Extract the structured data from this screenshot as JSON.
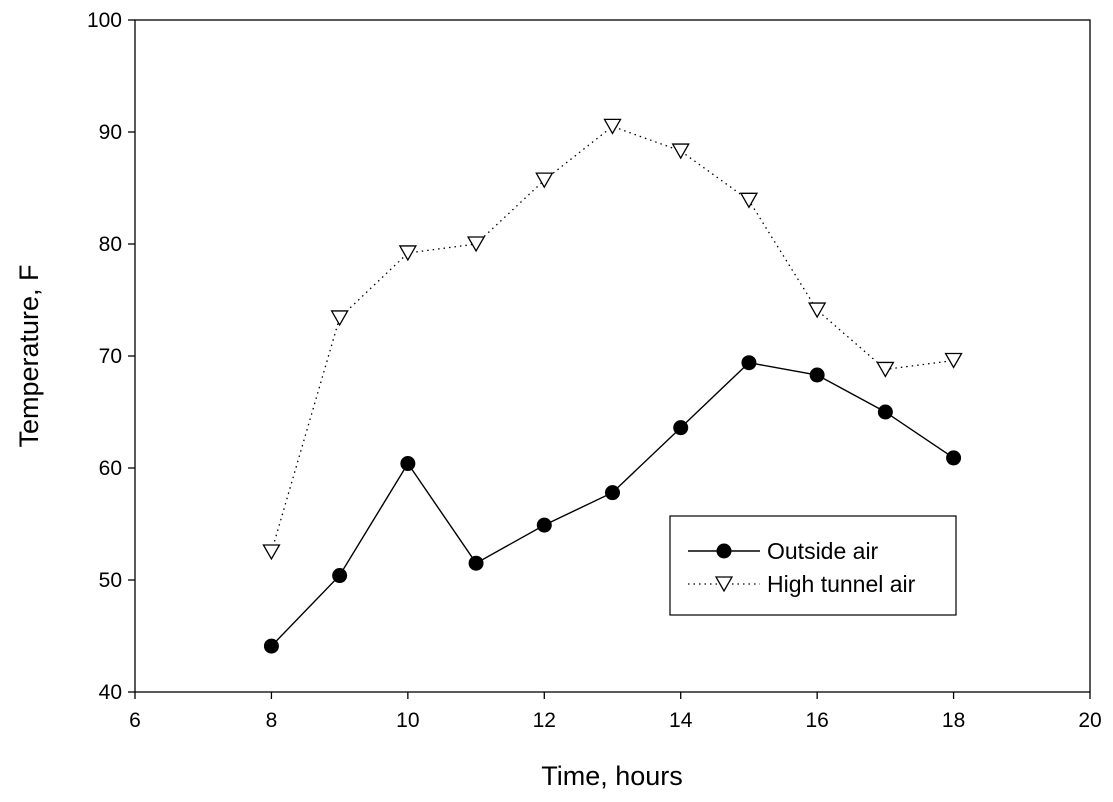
{
  "chart_data": {
    "type": "line",
    "title": "",
    "xlabel": "Time, hours",
    "ylabel": "Temperature, F",
    "xlim": [
      6,
      20
    ],
    "ylim": [
      40,
      100
    ],
    "xticks": [
      6,
      8,
      10,
      12,
      14,
      16,
      18,
      20
    ],
    "yticks": [
      40,
      50,
      60,
      70,
      80,
      90,
      100
    ],
    "grid": false,
    "legend_position": "lower-right",
    "series": [
      {
        "name": "Outside air",
        "line_style": "solid",
        "marker": "filled-circle",
        "color": "#000000",
        "x": [
          8,
          9,
          10,
          11,
          12,
          13,
          14,
          15,
          16,
          17,
          18
        ],
        "y": [
          44.1,
          50.4,
          60.4,
          51.5,
          54.9,
          57.8,
          63.6,
          69.4,
          68.3,
          65.0,
          60.9
        ]
      },
      {
        "name": "High tunnel air",
        "line_style": "dotted",
        "marker": "open-down-triangle",
        "color": "#000000",
        "x": [
          8,
          9,
          10,
          11,
          12,
          13,
          14,
          15,
          16,
          17,
          18
        ],
        "y": [
          52.5,
          73.4,
          79.2,
          80.0,
          85.7,
          90.5,
          88.3,
          83.9,
          74.1,
          68.8,
          69.6
        ]
      }
    ]
  }
}
